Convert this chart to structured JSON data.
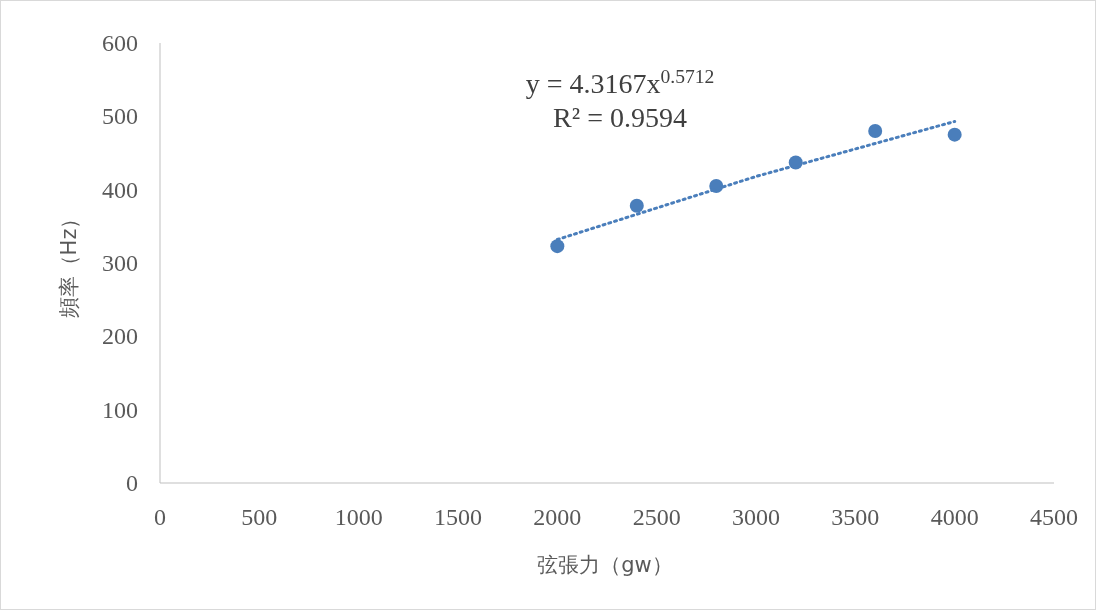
{
  "chart_data": {
    "type": "scatter",
    "xlabel": "弦張力（gw）",
    "ylabel": "頻率（Hz）",
    "annotations": [
      "y = 4.3167x$^{0.5712}$",
      "R² = 0.9594"
    ],
    "xlim": [
      0,
      4500
    ],
    "xticks": [
      0,
      500,
      1000,
      1500,
      2000,
      2500,
      3000,
      3500,
      4000,
      4500
    ],
    "ylim": [
      0,
      600
    ],
    "yticks": [
      0,
      100,
      200,
      300,
      400,
      500,
      600
    ],
    "marker": "circle",
    "grid": false,
    "series": [
      {
        "x": [
          2000,
          2400,
          2800,
          3200,
          3600,
          4000
        ],
        "values": [
          323,
          378,
          405,
          437,
          480,
          475
        ],
        "color": "#4a7ebb"
      },
      {
        "type": "line",
        "x": [
          2000,
          3000,
          4000
        ],
        "values": [
          332,
          418,
          493
        ],
        "color": "#4a7ebb",
        "line_style": "dotted",
        "marker": "none"
      }
    ]
  }
}
